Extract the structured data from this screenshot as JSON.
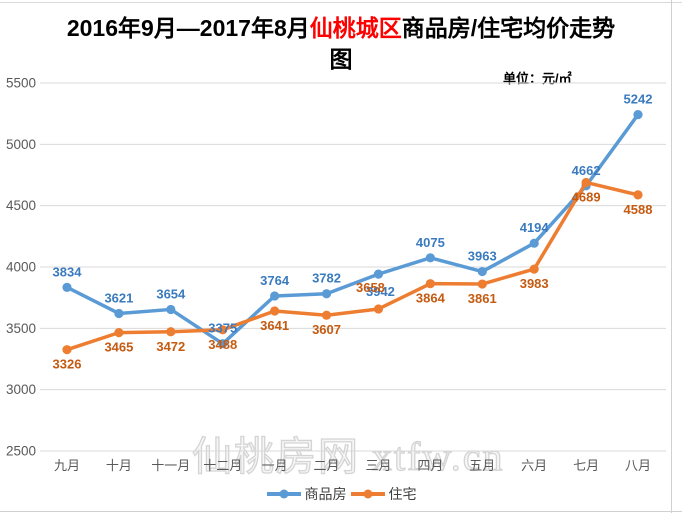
{
  "title": {
    "prefix": "2016年9月—2017年8月",
    "highlight": "仙桃城区",
    "suffix": "商品房/住宅均价走势",
    "line2": "图"
  },
  "unit_label": "单位：元/㎡",
  "watermark": "仙桃房网 xtfw.cn",
  "colors": {
    "grid": "#d9d9d9",
    "tick_text": "#595959",
    "title_highlight": "#ff0000",
    "legend_text": "#404040"
  },
  "legend": {
    "items": [
      {
        "label": "商品房"
      },
      {
        "label": "住宅"
      }
    ]
  },
  "chart_data": {
    "type": "line",
    "title": "2016年9月—2017年8月仙桃城区商品房/住宅均价走势图",
    "unit": "元/㎡",
    "categories": [
      "九月",
      "十月",
      "十一月",
      "十二月",
      "一月",
      "二月",
      "三月",
      "四月",
      "五月",
      "六月",
      "七月",
      "八月"
    ],
    "series": [
      {
        "name": "商品房",
        "color": "#5B9BD5",
        "label_color": "#3A7BBF",
        "values": [
          3834,
          3621,
          3654,
          3375,
          3764,
          3782,
          3942,
          4075,
          3963,
          4194,
          4662,
          5242
        ]
      },
      {
        "name": "住宅",
        "color": "#ED7D31",
        "label_color": "#C55A11",
        "values": [
          3326,
          3465,
          3472,
          3488,
          3641,
          3607,
          3658,
          3864,
          3861,
          3983,
          4689,
          4588
        ]
      }
    ],
    "ylim": [
      2500,
      5500
    ],
    "yticks": [
      2500,
      3000,
      3500,
      4000,
      4500,
      5000,
      5500
    ],
    "grid": true,
    "data_labels": true,
    "legend_position": "bottom"
  }
}
